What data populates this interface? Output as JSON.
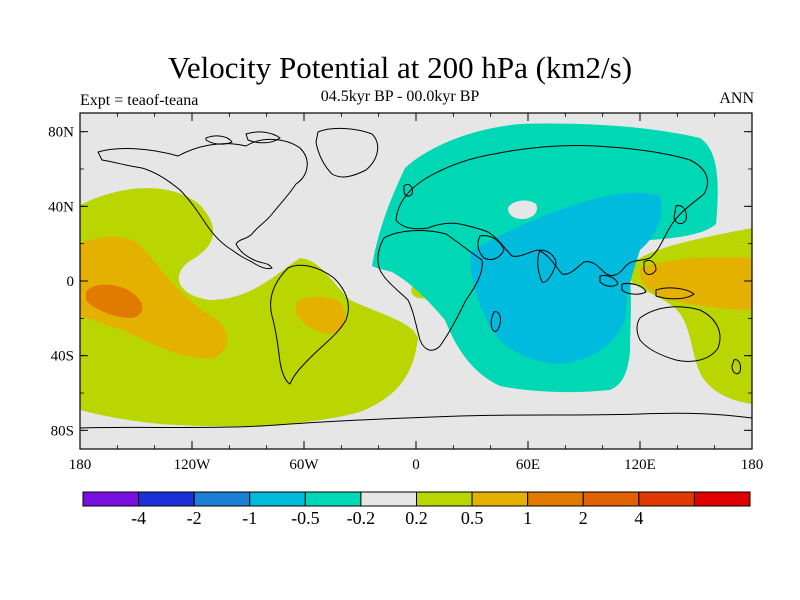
{
  "title": "Velocity Potential at 200 hPa (km2/s)",
  "subtitle": "04.5kyr BP - 00.0kyr BP",
  "experiment": "Expt = teaof-teana",
  "season": "ANN",
  "colors": {
    "background": "#e6e6e6",
    "green": "#b9d600",
    "orange_light": "#e4b100",
    "orange_dark": "#e07a00",
    "teal": "#00d7b4",
    "cyan": "#00bbdd",
    "coast": "#000000"
  },
  "axes": {
    "x_ticks": [
      "180",
      "120W",
      "60W",
      "0",
      "60E",
      "120E",
      "180"
    ],
    "y_ticks": [
      "80N",
      "40N",
      "0",
      "40S",
      "80S"
    ]
  },
  "colorbar": {
    "colors": [
      "#7a10df",
      "#2030d8",
      "#1c7fd6",
      "#00bbdd",
      "#00d7b4",
      "#e6e6e6",
      "#b9d600",
      "#e4b100",
      "#e07a00",
      "#e06100",
      "#e03a00",
      "#e00000"
    ],
    "labels": [
      "-4",
      "-2",
      "-1",
      "-0.5",
      "-0.2",
      "0.2",
      "0.5",
      "1",
      "2",
      "4"
    ]
  }
}
